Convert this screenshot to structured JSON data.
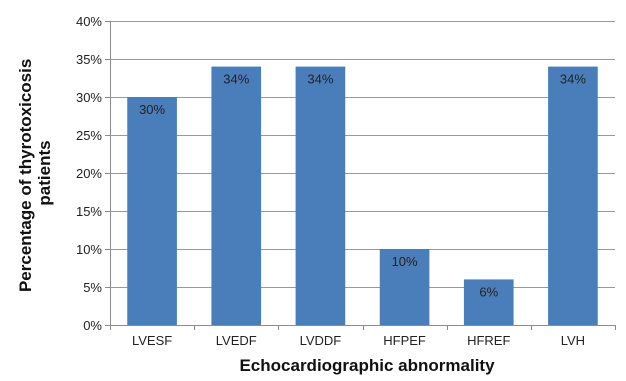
{
  "chart_data": {
    "type": "bar",
    "categories": [
      "LVESF",
      "LVEDF",
      "LVDDF",
      "HFPEF",
      "HFREF",
      "LVH"
    ],
    "series": [
      {
        "values": [
          30,
          34,
          34,
          10,
          6,
          34
        ],
        "color": "#4a7ebb",
        "data_labels": [
          "30%",
          "34%",
          "34%",
          "10%",
          "6%",
          "34%"
        ]
      }
    ],
    "xlabel": "Echocardiographic abnormality",
    "ylabel_lines": [
      "Percentage of thyrotoxicosis",
      "patients"
    ],
    "ylim": [
      0,
      40
    ],
    "yticks": [
      0,
      5,
      10,
      15,
      20,
      25,
      30,
      35,
      40
    ],
    "ytick_labels": [
      "0%",
      "5%",
      "10%",
      "15%",
      "20%",
      "25%",
      "30%",
      "35%",
      "40%"
    ],
    "grid": true,
    "gridline_color": "#999999",
    "axis_color": "#8c8c8c",
    "legend": "none"
  }
}
